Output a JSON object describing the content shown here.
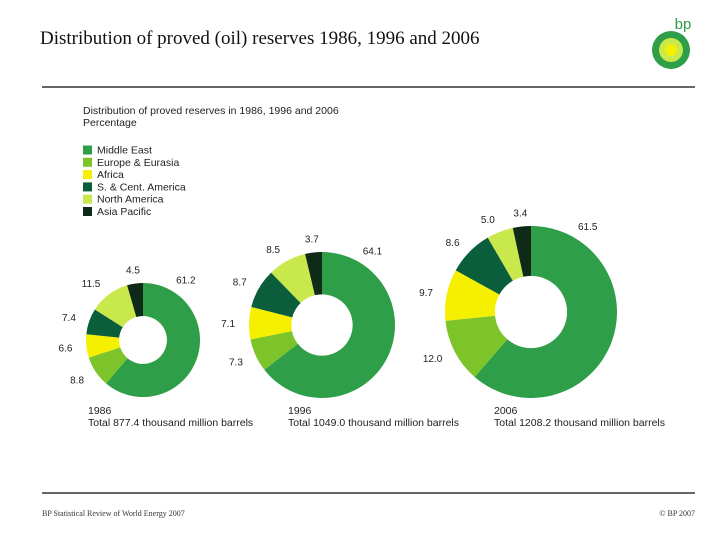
{
  "slide": {
    "title": "Distribution of proved (oil) reserves 1986, 1996 and 2006",
    "logo": "bp",
    "footer_left": "BP Statistical Review of World Energy 2007",
    "footer_right": "© BP 2007"
  },
  "chart_data": {
    "type": "donut",
    "title": "Distribution of proved reserves in 1986, 1996 and 2006",
    "subtitle": "Percentage",
    "categories": [
      "Middle East",
      "Europe & Eurasia",
      "Africa",
      "S. & Cent. America",
      "North America",
      "Asia Pacific"
    ],
    "colors": [
      "#2e9e48",
      "#7dc42a",
      "#f5ef00",
      "#0b5e3c",
      "#c8e84c",
      "#0f2a17"
    ],
    "series": [
      {
        "name": "1986",
        "total": "Total 877.4 thousand million barrels",
        "values": [
          61.2,
          8.8,
          6.6,
          7.4,
          11.5,
          4.5
        ]
      },
      {
        "name": "1996",
        "total": "Total 1049.0 thousand million barrels",
        "values": [
          64.1,
          7.3,
          7.1,
          8.7,
          8.5,
          3.7
        ]
      },
      {
        "name": "2006",
        "total": "Total 1208.2 thousand million barrels",
        "values": [
          61.5,
          12.0,
          9.7,
          8.6,
          5.0,
          3.4
        ],
        "value_labels": [
          "61.5",
          "12.0",
          "9.7",
          "8.6",
          "5.0",
          "3.4"
        ]
      }
    ]
  }
}
